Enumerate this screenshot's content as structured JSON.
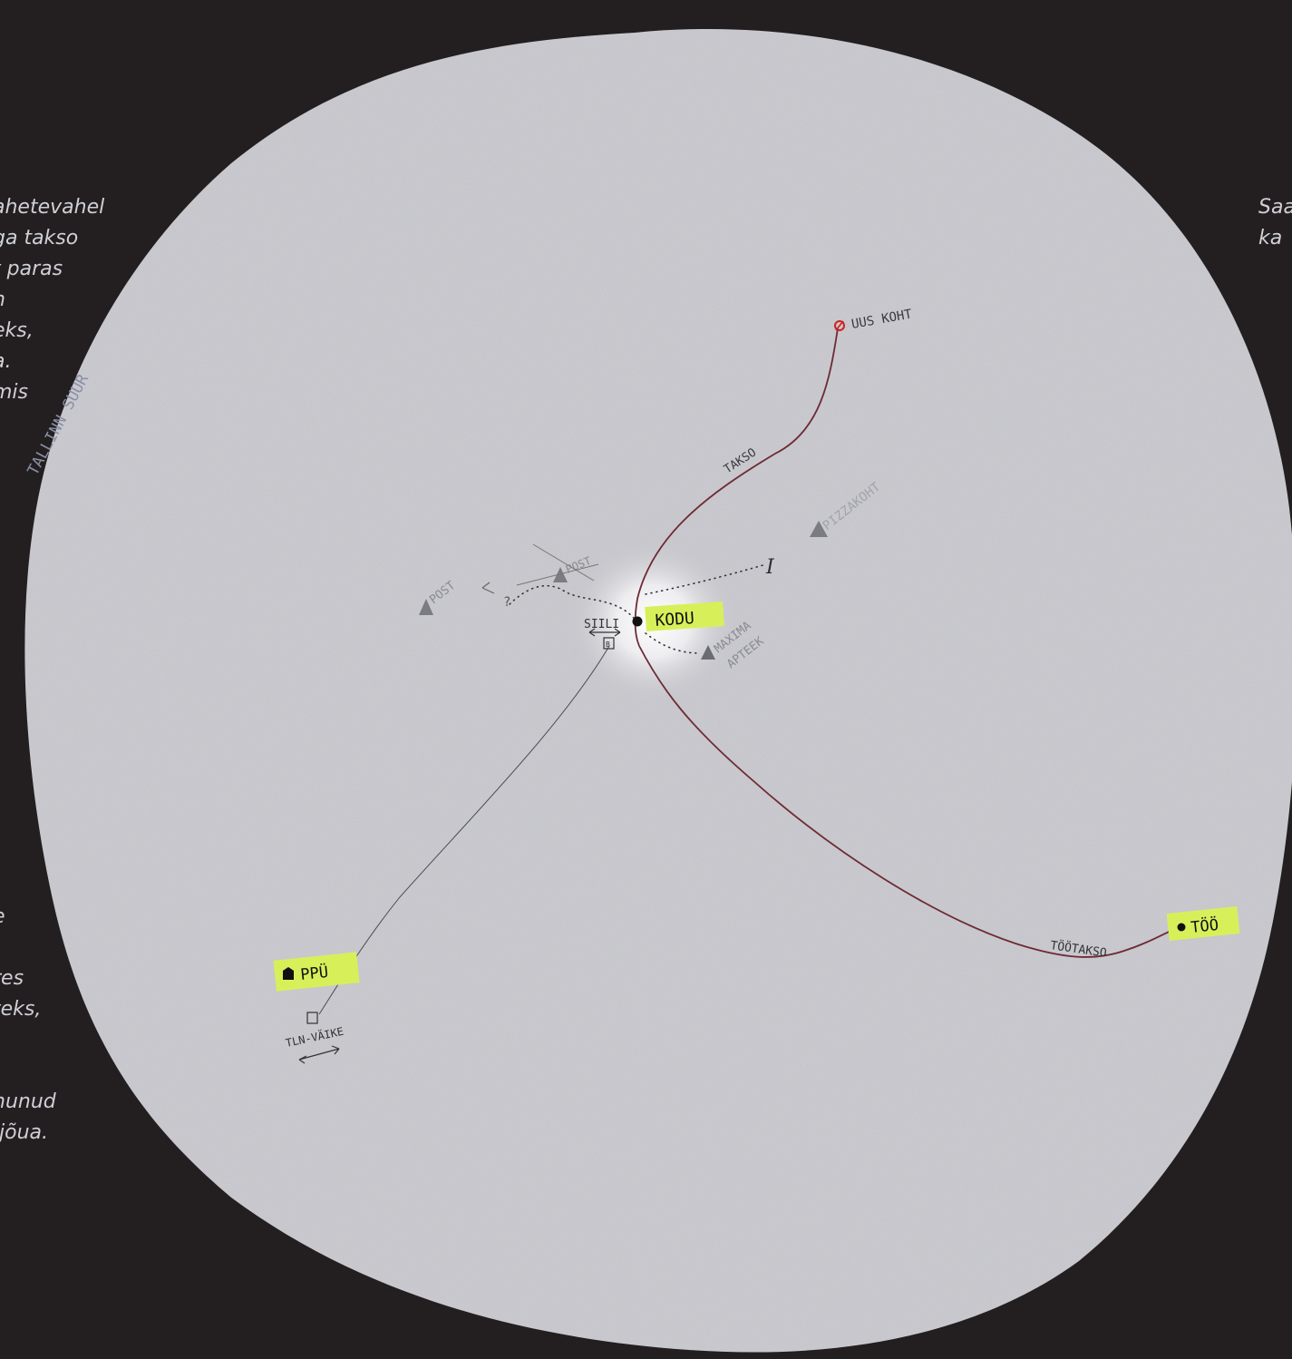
{
  "notes": {
    "left_top": "ahetevahel\nga takso\nt paras\nn\neks,\na.\nmis",
    "left_bottom": "e\n\nres\nteks,\n\n\nnunud\n jõua.",
    "right_top": "Saa\nka "
  },
  "map": {
    "region_label": "TALLINN SUUR",
    "places": {
      "home": "KODU",
      "new_place": "UUS KOHT",
      "work": "TÖÖ",
      "ppu": "PPÜ",
      "maxima_line1": "MAXIMA",
      "maxima_line2": "APTEEK",
      "post_crossed": "POST",
      "post": "POST",
      "right_place": "PIZZAKOHT",
      "siili": "SIILI",
      "tln_vaike": "TLN-VÄIKE",
      "question": "?",
      "marker_i": "I"
    },
    "routes": {
      "taxi": "TAKSO",
      "work_taxi": "TÖÖTAKSO"
    },
    "colors": {
      "background": "#231f20",
      "paper": "#c9c9cf",
      "route": "#6e2a34",
      "highlight": "#d7f05a",
      "new_place_marker": "#d02020",
      "pencil": "#4a4a52"
    }
  }
}
